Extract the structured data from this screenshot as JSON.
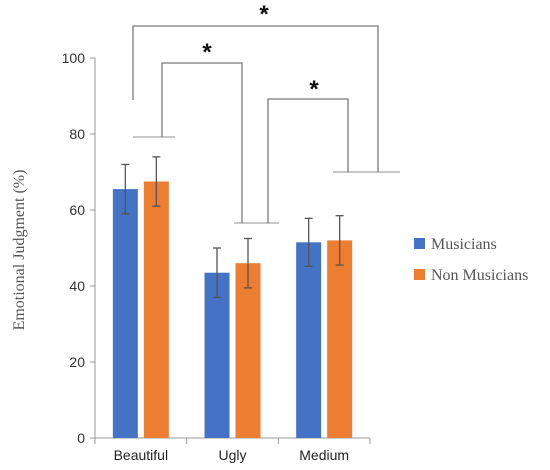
{
  "chart_data": {
    "type": "bar",
    "title": "",
    "xlabel": "",
    "ylabel": "Emotional Judgment (%)",
    "ylim": [
      0,
      100
    ],
    "yticks": [
      0,
      20,
      40,
      60,
      80,
      100
    ],
    "categories": [
      "Beautiful",
      "Ugly",
      "Medium"
    ],
    "series": [
      {
        "name": "Musicians",
        "color": "#4472C4",
        "values": [
          65.5,
          43.5,
          51.5
        ],
        "errors": [
          6.5,
          6.5,
          6.3
        ]
      },
      {
        "name": "Non Musicians",
        "color": "#ED7D31",
        "values": [
          67.5,
          46.0,
          52.0
        ],
        "errors": [
          6.5,
          6.5,
          6.5
        ]
      }
    ],
    "grid": false,
    "legend": "right",
    "significance": [
      {
        "between": [
          "Beautiful",
          "Ugly"
        ],
        "label": "*"
      },
      {
        "between": [
          "Ugly",
          "Medium"
        ],
        "label": "*"
      },
      {
        "between": [
          "Beautiful",
          "Medium"
        ],
        "label": "*"
      }
    ]
  }
}
